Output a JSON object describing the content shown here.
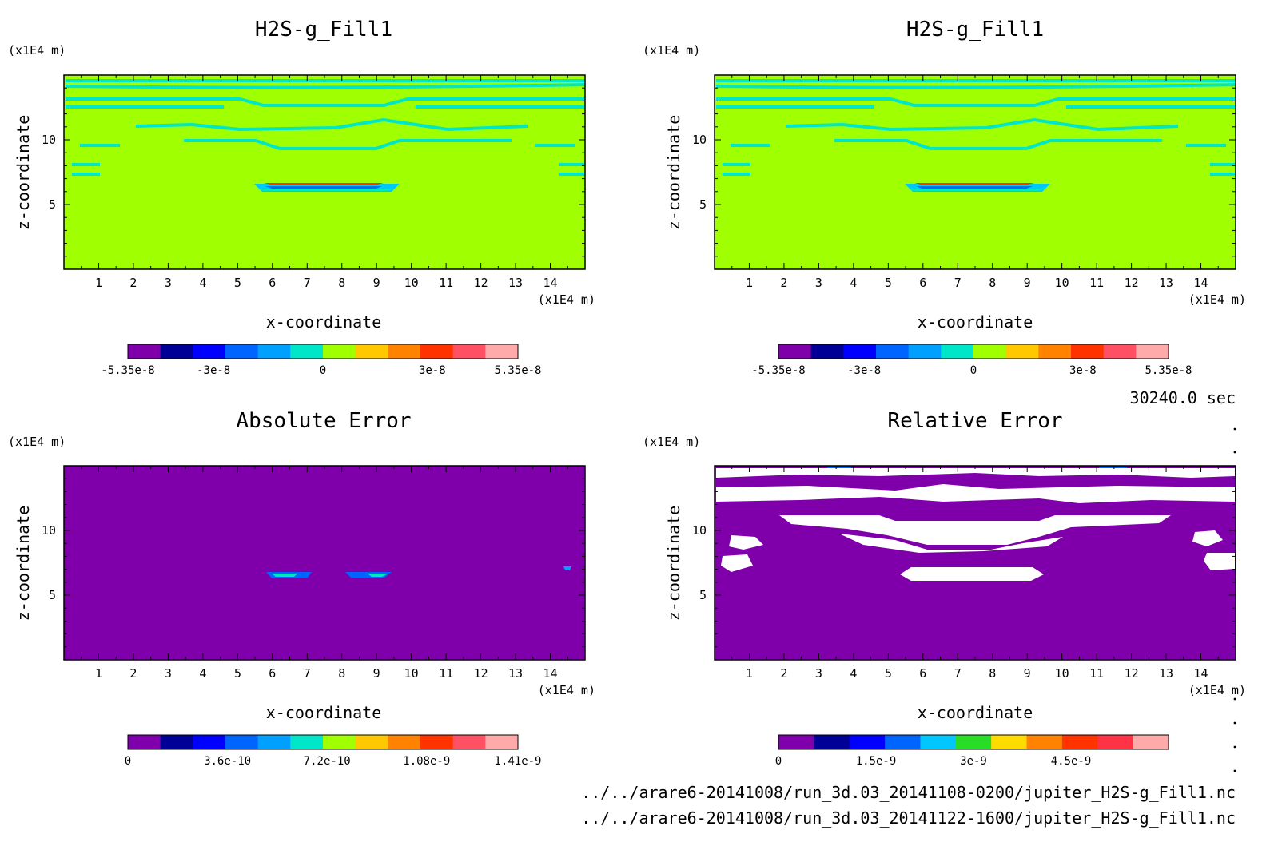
{
  "chart_data": [
    {
      "type": "heatmap",
      "title": "H2S-g_Fill1",
      "xlabel": "x-coordinate",
      "ylabel": "z-coordinate",
      "x_unit": "(x1E4 m)",
      "y_unit": "(x1E4 m)",
      "xlim": [
        0,
        15
      ],
      "ylim": [
        0,
        15
      ],
      "x_ticks": [
        1,
        2,
        3,
        4,
        5,
        6,
        7,
        8,
        9,
        10,
        11,
        12,
        13,
        14
      ],
      "y_ticks": [
        5,
        10
      ],
      "colorbar": {
        "range": [
          -5.35e-08,
          5.35e-08
        ],
        "tick_values": [
          -5.35e-08,
          -3e-08,
          0,
          3e-08,
          5.35e-08
        ],
        "tick_labels": [
          "-5.35e-8",
          "-3e-8",
          "0",
          "3e-8",
          "5.35e-8"
        ],
        "colors": [
          "#7f00aa",
          "#000096",
          "#0000ff",
          "#0064ff",
          "#00a0ff",
          "#00e6c8",
          "#a0ff00",
          "#ffc800",
          "#ff8200",
          "#ff3200",
          "#ff5064",
          "#ffaaaa"
        ]
      },
      "fill_value": 0,
      "features": [
        {
          "kind": "contour_band",
          "z": 14.1,
          "x0": 0.1,
          "x1": 15,
          "value": -1e-09
        },
        {
          "kind": "contour_band",
          "z": 13.3,
          "x0": 0.1,
          "x1": 15,
          "value": -1e-09
        },
        {
          "kind": "contour_band",
          "z": 12.5,
          "x0": 0.1,
          "x1": 15,
          "value": -1e-09
        },
        {
          "kind": "contour_band",
          "z": 11.1,
          "x0": 2,
          "x1": 13.5,
          "value": -1e-09
        },
        {
          "kind": "contour_band",
          "z": 10.1,
          "x0": 3,
          "x1": 12,
          "value": -1e-09
        },
        {
          "kind": "contour_band",
          "z": 9.3,
          "x0": 0.5,
          "x1": 14.5,
          "value": -1e-09
        },
        {
          "kind": "contour_band",
          "z": 7.5,
          "x0": 0.1,
          "x1": 15,
          "value": -1e-09
        },
        {
          "kind": "plume",
          "z": 6.6,
          "x0": 5.5,
          "x1": 9.7,
          "value_max": 5.35e-08,
          "value_min": -5.35e-08
        }
      ]
    },
    {
      "type": "heatmap",
      "title": "H2S-g_Fill1",
      "xlabel": "x-coordinate",
      "ylabel": "z-coordinate",
      "x_unit": "(x1E4 m)",
      "y_unit": "(x1E4 m)",
      "xlim": [
        0,
        15
      ],
      "ylim": [
        0,
        15
      ],
      "x_ticks": [
        1,
        2,
        3,
        4,
        5,
        6,
        7,
        8,
        9,
        10,
        11,
        12,
        13,
        14
      ],
      "y_ticks": [
        5,
        10
      ],
      "colorbar": {
        "range": [
          -5.35e-08,
          5.35e-08
        ],
        "tick_values": [
          -5.35e-08,
          -3e-08,
          0,
          3e-08,
          5.35e-08
        ],
        "tick_labels": [
          "-5.35e-8",
          "-3e-8",
          "0",
          "3e-8",
          "5.35e-8"
        ],
        "colors": [
          "#7f00aa",
          "#000096",
          "#0000ff",
          "#0064ff",
          "#00a0ff",
          "#00e6c8",
          "#a0ff00",
          "#ffc800",
          "#ff8200",
          "#ff3200",
          "#ff5064",
          "#ffaaaa"
        ]
      },
      "fill_value": 0,
      "features": [
        {
          "kind": "contour_band",
          "z": 14.1,
          "x0": 0.1,
          "x1": 15,
          "value": -1e-09
        },
        {
          "kind": "contour_band",
          "z": 13.3,
          "x0": 0.1,
          "x1": 15,
          "value": -1e-09
        },
        {
          "kind": "contour_band",
          "z": 12.5,
          "x0": 0.1,
          "x1": 15,
          "value": -1e-09
        },
        {
          "kind": "contour_band",
          "z": 11.1,
          "x0": 2,
          "x1": 13.5,
          "value": -1e-09
        },
        {
          "kind": "contour_band",
          "z": 10.1,
          "x0": 3,
          "x1": 12,
          "value": -1e-09
        },
        {
          "kind": "contour_band",
          "z": 9.3,
          "x0": 0.5,
          "x1": 14.5,
          "value": -1e-09
        },
        {
          "kind": "contour_band",
          "z": 7.5,
          "x0": 0.1,
          "x1": 15,
          "value": -1e-09
        },
        {
          "kind": "plume",
          "z": 6.6,
          "x0": 5.5,
          "x1": 9.7,
          "value_max": 5.35e-08,
          "value_min": -5.35e-08
        }
      ]
    },
    {
      "type": "heatmap",
      "title": "Absolute Error",
      "xlabel": "x-coordinate",
      "ylabel": "z-coordinate",
      "x_unit": "(x1E4 m)",
      "y_unit": "(x1E4 m)",
      "xlim": [
        0,
        15
      ],
      "ylim": [
        0,
        15
      ],
      "x_ticks": [
        1,
        2,
        3,
        4,
        5,
        6,
        7,
        8,
        9,
        10,
        11,
        12,
        13,
        14
      ],
      "y_ticks": [
        5,
        10
      ],
      "colorbar": {
        "range": [
          0,
          1.41e-09
        ],
        "tick_values": [
          0,
          3.6e-10,
          7.2e-10,
          1.08e-09,
          1.41e-09
        ],
        "tick_labels": [
          "0",
          "3.6e-10",
          "7.2e-10",
          "1.08e-9",
          "1.41e-9"
        ],
        "colors": [
          "#7f00aa",
          "#000096",
          "#0000ff",
          "#0064ff",
          "#00a0ff",
          "#00e6c8",
          "#a0ff00",
          "#ffc800",
          "#ff8200",
          "#ff3200",
          "#ff5064",
          "#ffaaaa"
        ]
      },
      "fill_value": 0,
      "features": [
        {
          "kind": "spot",
          "x": 6.4,
          "z": 6.5,
          "value": 7.2e-10
        },
        {
          "kind": "spot",
          "x": 8.9,
          "z": 6.5,
          "value": 7.2e-10
        },
        {
          "kind": "spot",
          "x": 14.5,
          "z": 7.0,
          "value": 3.6e-10
        }
      ]
    },
    {
      "type": "heatmap",
      "title": "Relative Error",
      "xlabel": "x-coordinate",
      "ylabel": "z-coordinate",
      "x_unit": "(x1E4 m)",
      "y_unit": "(x1E4 m)",
      "xlim": [
        0,
        15
      ],
      "ylim": [
        0,
        15
      ],
      "x_ticks": [
        1,
        2,
        3,
        4,
        5,
        6,
        7,
        8,
        9,
        10,
        11,
        12,
        13,
        14
      ],
      "y_ticks": [
        5,
        10
      ],
      "colorbar": {
        "range": [
          0,
          6e-09
        ],
        "tick_values": [
          0,
          1.5e-09,
          3e-09,
          4.5e-09
        ],
        "tick_labels": [
          "0",
          "1.5e-9",
          "3e-9",
          "4.5e-9"
        ],
        "colors": [
          "#7f00aa",
          "#000096",
          "#0000ff",
          "#0064ff",
          "#00c8ff",
          "#28dc28",
          "#ffdc00",
          "#ff8200",
          "#ff3200",
          "#ff3246",
          "#ffaaaa"
        ]
      },
      "fill_value": 0,
      "undefined_color": "#ffffff",
      "features": [
        {
          "kind": "undefined_band",
          "z": 14.1,
          "x0": 0.1,
          "x1": 15
        },
        {
          "kind": "undefined_band",
          "z": 12.5,
          "x0": 0.1,
          "x1": 15
        },
        {
          "kind": "undefined_band",
          "z": 11.1,
          "x0": 2,
          "x1": 13.5
        },
        {
          "kind": "undefined_band",
          "z": 10.1,
          "x0": 3,
          "x1": 12
        },
        {
          "kind": "undefined_band",
          "z": 9.3,
          "x0": 0.5,
          "x1": 14.5
        },
        {
          "kind": "undefined_band",
          "z": 7.5,
          "x0": 0.1,
          "x1": 15
        },
        {
          "kind": "undefined_band",
          "z": 6.6,
          "x0": 5.5,
          "x1": 9.7
        }
      ]
    }
  ],
  "time_label": "30240.0 sec",
  "footer": {
    "file1": "../../arare6-20141008/run_3d.03_20141108-0200/jupiter_H2S-g_Fill1.nc",
    "file2": "../../arare6-20141008/run_3d.03_20141122-1600/jupiter_H2S-g_Fill1.nc"
  }
}
